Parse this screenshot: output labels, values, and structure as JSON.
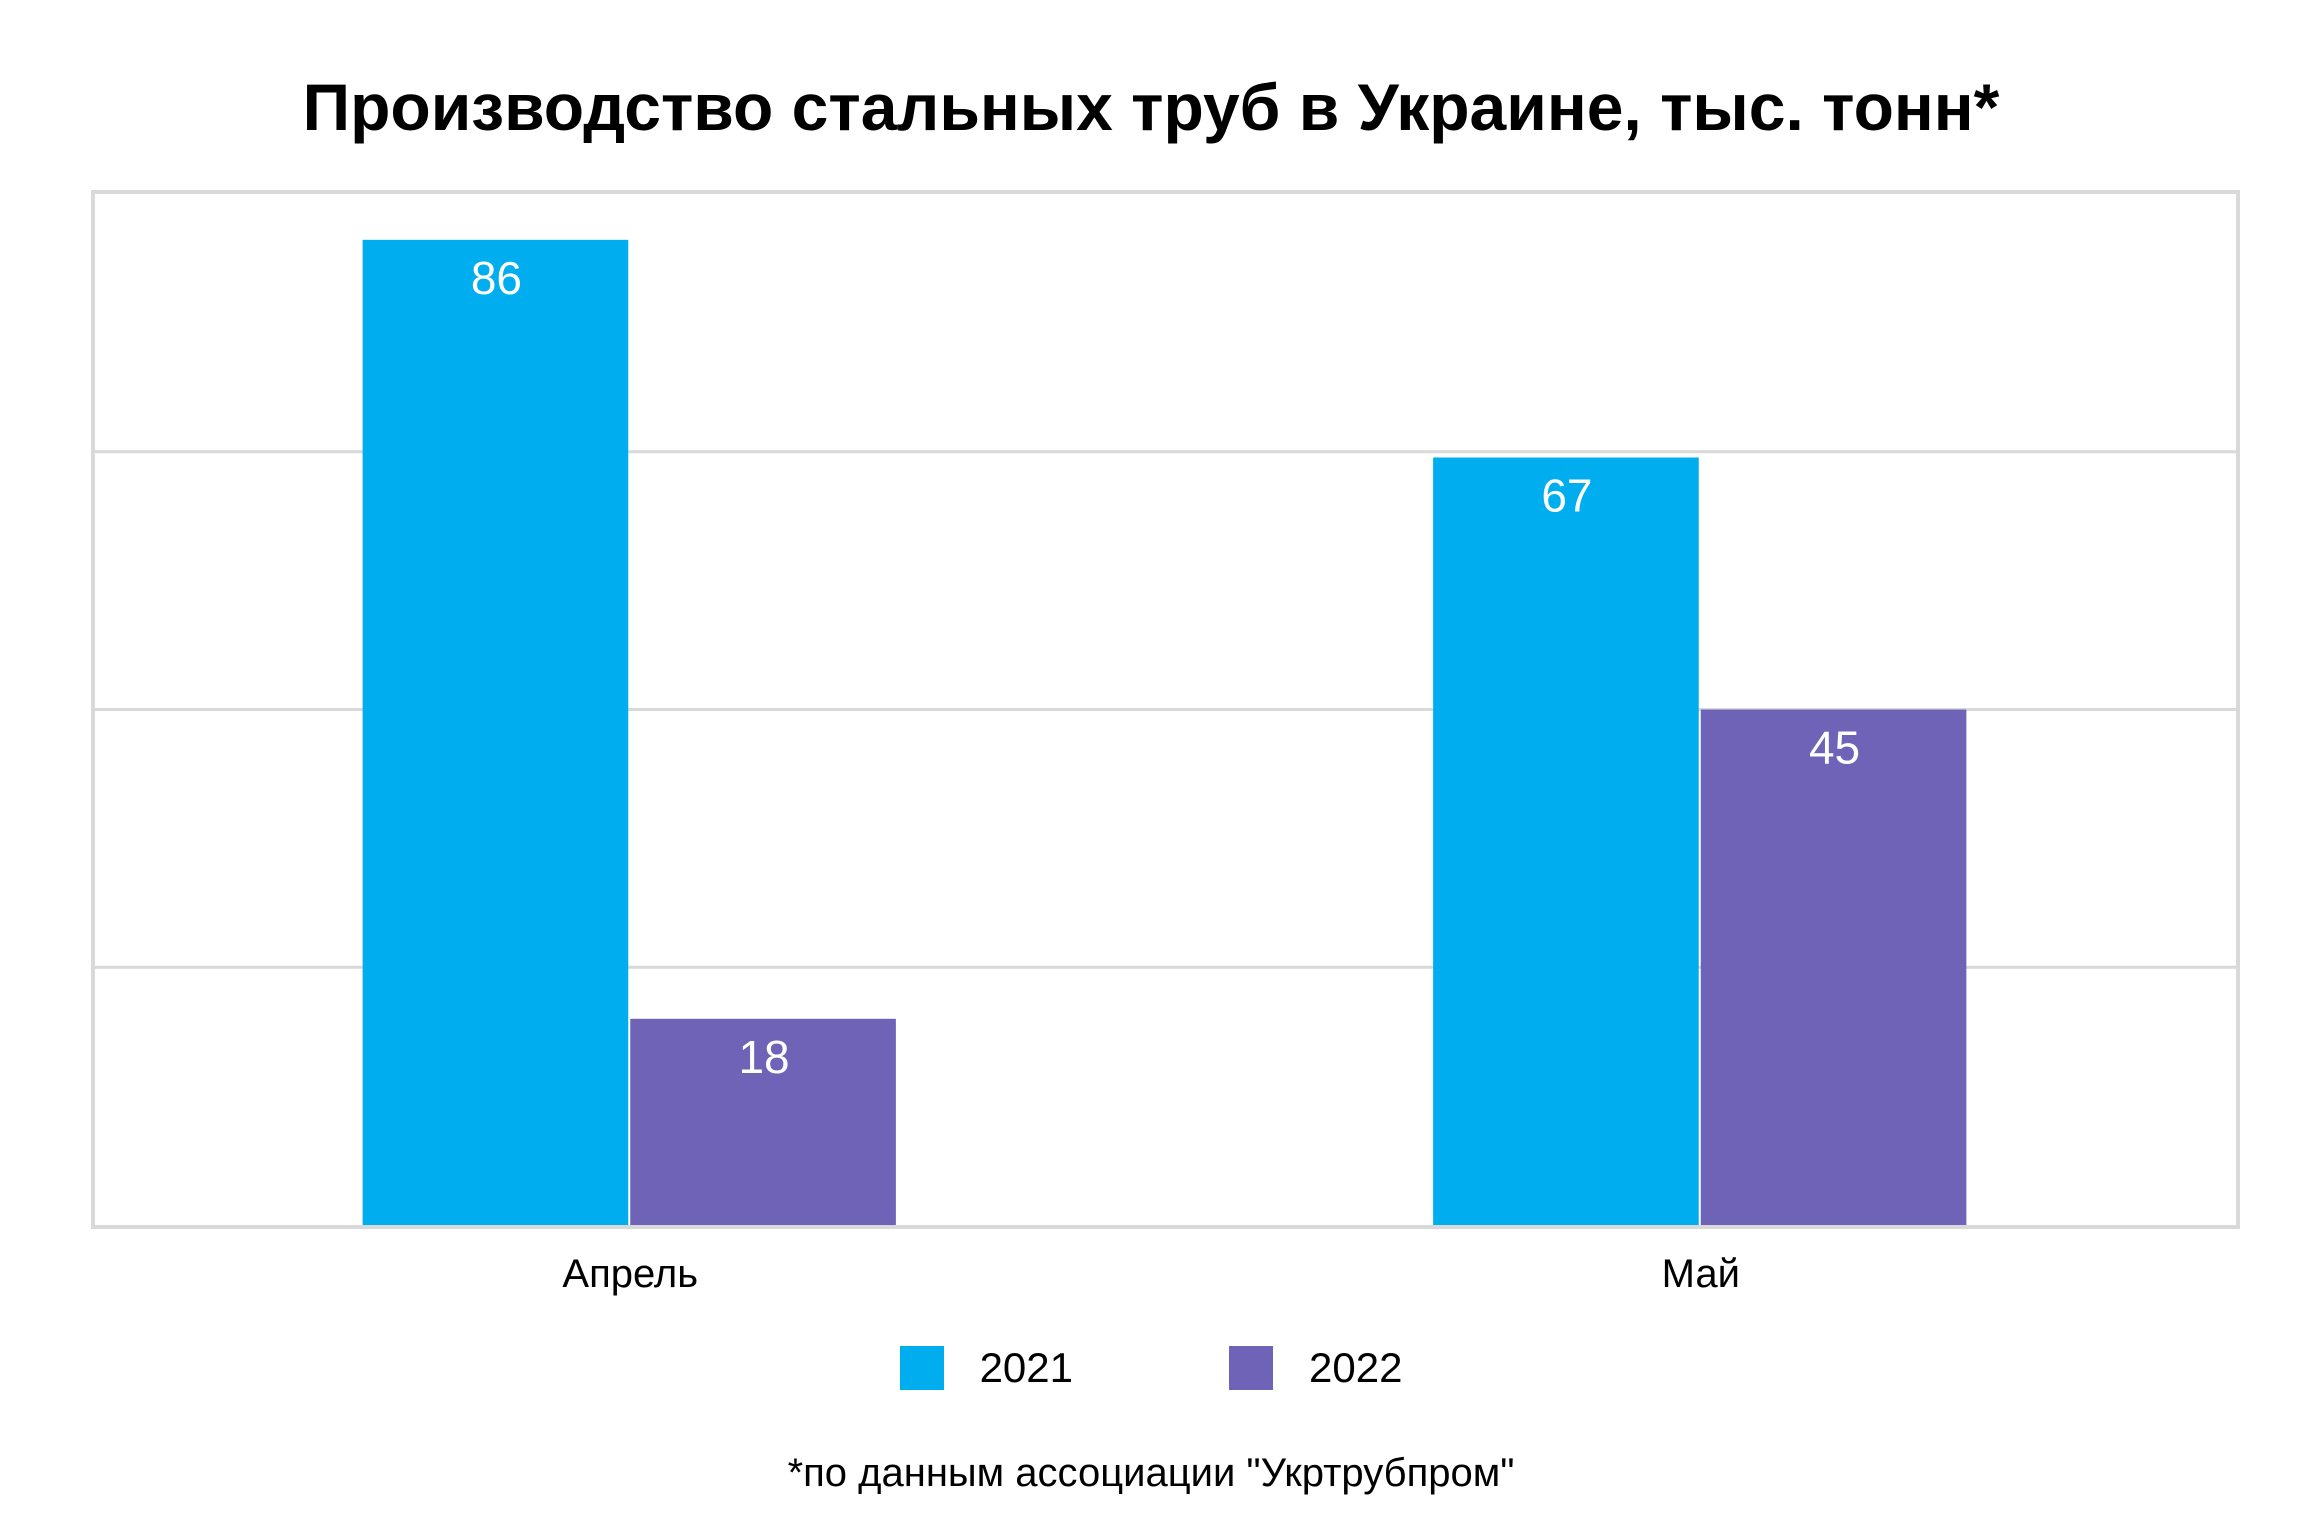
{
  "chart_data": {
    "type": "bar",
    "title": "Производство стальных труб в Украине, тыс. тонн*",
    "categories": [
      "Апрель",
      "Май"
    ],
    "series": [
      {
        "name": "2021",
        "values": [
          86,
          67
        ],
        "color": "#00aeef"
      },
      {
        "name": "2022",
        "values": [
          18,
          45
        ],
        "color": "#6f63b7"
      }
    ],
    "ylim": [
      0,
      90
    ],
    "y_gridlines": [
      22.5,
      45,
      67.5
    ],
    "grid": true,
    "legend_position": "bottom-center",
    "data_labels": true,
    "footnote": "*по данным ассоциации \"Укртрубпром\""
  }
}
